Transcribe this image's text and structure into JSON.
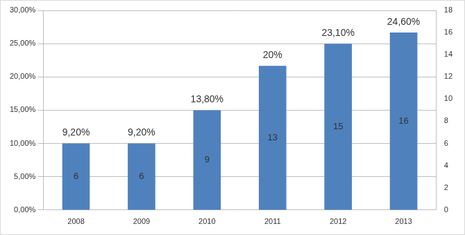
{
  "chart_data": {
    "type": "bar",
    "categories": [
      "2008",
      "2009",
      "2010",
      "2011",
      "2012",
      "2013"
    ],
    "series": [
      {
        "values": [
          6,
          6,
          9,
          13,
          15,
          16
        ],
        "axis": "y2",
        "color": "#4f81bd",
        "shares": [
          9.2,
          9.2,
          13.8,
          20,
          23.1,
          24.6
        ],
        "share_labels": [
          "9,20%",
          "9,20%",
          "13,80%",
          "20%",
          "23,10%",
          "24,60%"
        ]
      }
    ],
    "ylim": [
      0,
      30
    ],
    "yticks": [
      {
        "value": 0,
        "label": "0,00%"
      },
      {
        "value": 5,
        "label": "5,00%"
      },
      {
        "value": 10,
        "label": "10,00%"
      },
      {
        "value": 15,
        "label": "15,00%"
      },
      {
        "value": 20,
        "label": "20,00%"
      },
      {
        "value": 25,
        "label": "25,00%"
      },
      {
        "value": 30,
        "label": "30,00%"
      }
    ],
    "y2lim": [
      0,
      18
    ],
    "y2ticks": [
      0,
      2,
      4,
      6,
      8,
      10,
      12,
      14,
      16,
      18
    ],
    "grid": true,
    "data_labels": true
  }
}
